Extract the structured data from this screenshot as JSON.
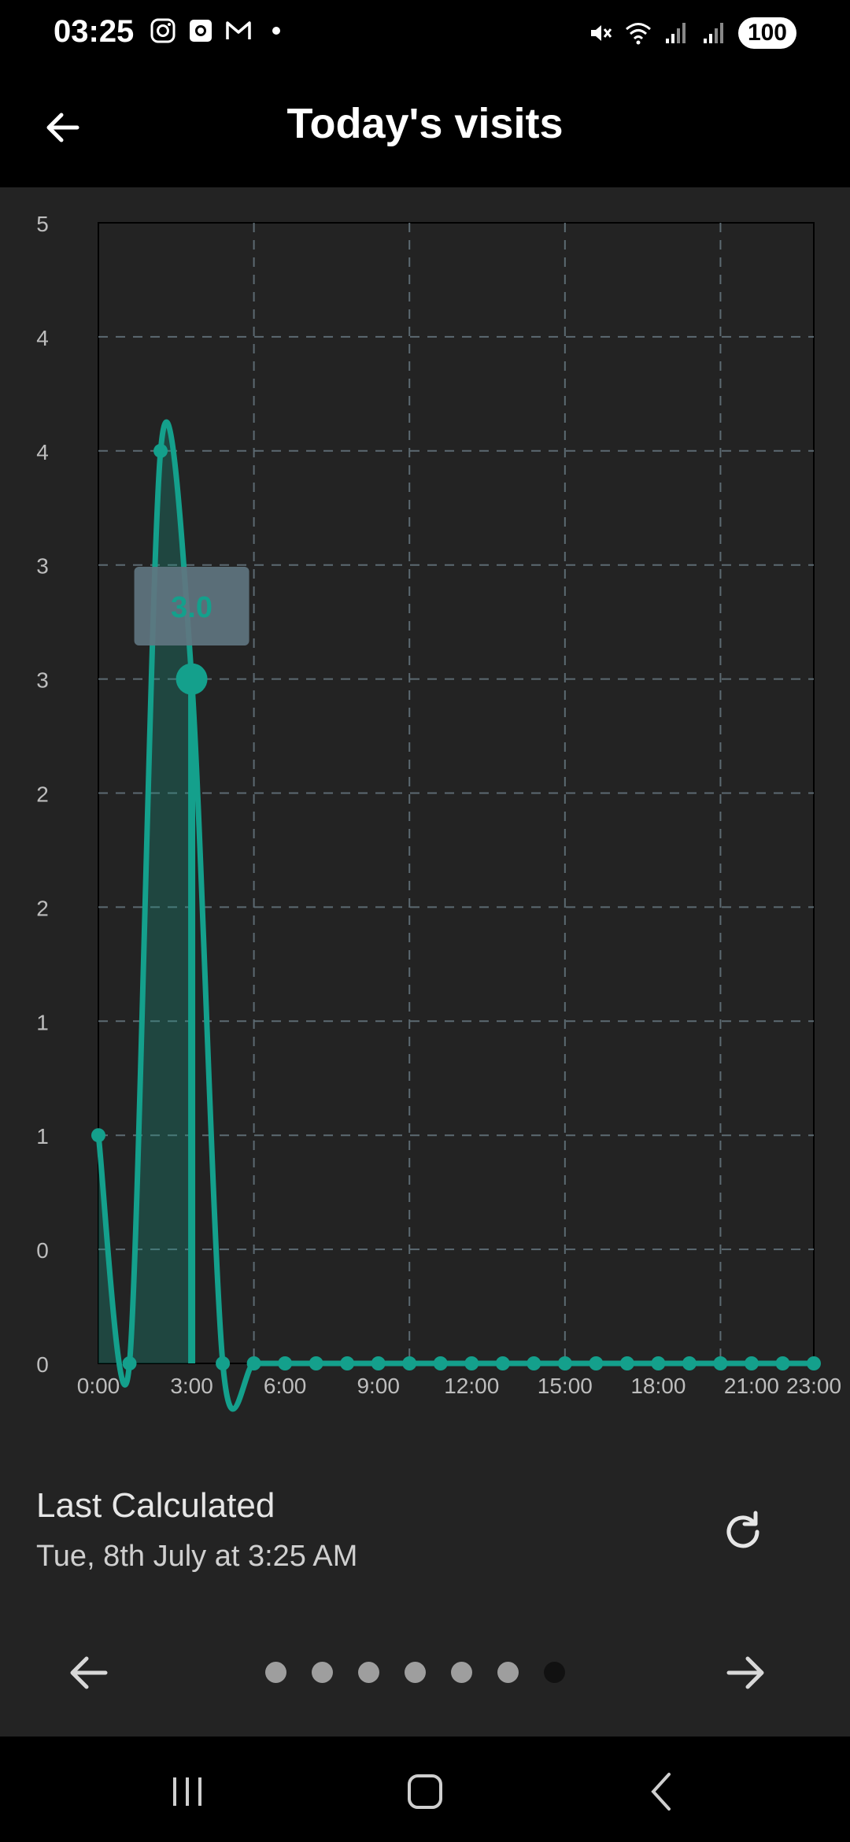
{
  "status_bar": {
    "time": "03:25",
    "battery": "100",
    "left_icons": [
      "instagram-icon",
      "screenshot-icon",
      "gmail-icon",
      "notification-dot-icon"
    ],
    "right_icons": [
      "mute-icon",
      "wifi-icon",
      "signal-icon",
      "signal-icon"
    ]
  },
  "app_bar": {
    "title": "Today's visits",
    "back_icon": "back-arrow-icon"
  },
  "chart_data": {
    "type": "line",
    "title": "",
    "xlabel": "",
    "ylabel": "",
    "x_tick_labels": [
      "0:00",
      "3:00",
      "6:00",
      "9:00",
      "12:00",
      "15:00",
      "18:00",
      "21:00",
      "23:00"
    ],
    "y_tick_labels": [
      "5",
      "4",
      "4",
      "3",
      "3",
      "2",
      "2",
      "1",
      "1",
      "0",
      "0"
    ],
    "ylim": [
      0,
      5
    ],
    "xlim": [
      0,
      23
    ],
    "grid": true,
    "series": [
      {
        "x": [
          0,
          1,
          2,
          3,
          4,
          5,
          6,
          7,
          8,
          9,
          10,
          11,
          12,
          13,
          14,
          15,
          16,
          17,
          18,
          19,
          20,
          21,
          22,
          23
        ],
        "values": [
          1,
          0,
          4,
          3,
          0,
          0,
          0,
          0,
          0,
          0,
          0,
          0,
          0,
          0,
          0,
          0,
          0,
          0,
          0,
          0,
          0,
          0,
          0,
          0
        ],
        "color": "#14a08c"
      }
    ],
    "tooltip": {
      "label": "3.0",
      "x": 3,
      "value": 3
    }
  },
  "info": {
    "last_calculated_label": "Last Calculated",
    "last_calculated_date": "Tue, 8th July at 3:25 AM",
    "refresh_icon": "refresh-icon"
  },
  "pager": {
    "page_count": 7,
    "active_index": 6
  },
  "colors": {
    "accent": "#14a08c",
    "background": "#232323",
    "bar": "#000000"
  }
}
